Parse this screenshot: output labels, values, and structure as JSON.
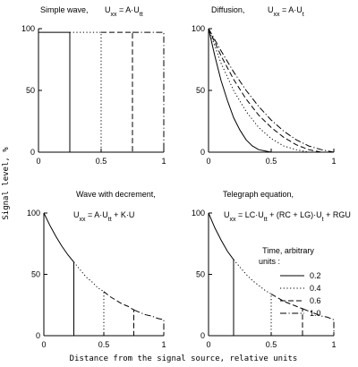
{
  "chart_data": {
    "type": "line",
    "figure": {
      "ylabel": "Signal level, %",
      "xlabel": "Distance from the signal source, relative units"
    },
    "legend": {
      "title_line1": "Time, arbitrary",
      "title_line2": "units :",
      "position": "inside bottom-right panel",
      "entries": [
        {
          "label": "0.2",
          "style": "solid"
        },
        {
          "label": "0.4",
          "style": "dot"
        },
        {
          "label": "0.6",
          "style": "dash"
        },
        {
          "label": "1.0",
          "style": "dashdot"
        }
      ]
    },
    "panels": [
      {
        "title": "Simple wave,",
        "equation": "U_xx = A·U_tt",
        "xlim": [
          0,
          1
        ],
        "ylim": [
          0,
          100
        ],
        "xticks": [
          "0",
          "0.5",
          "1"
        ],
        "yticks": [
          "0",
          "50",
          "100"
        ],
        "series": [
          {
            "style": "solid",
            "x": [
              0,
              0.25,
              0.25
            ],
            "y": [
              97,
              97,
              0
            ]
          },
          {
            "style": "dot",
            "x": [
              0.25,
              0.5,
              0.5
            ],
            "y": [
              97,
              97,
              0
            ]
          },
          {
            "style": "dash",
            "x": [
              0.5,
              0.75,
              0.75
            ],
            "y": [
              97,
              97,
              0
            ]
          },
          {
            "style": "dashdot",
            "x": [
              0.75,
              1.0,
              1.0
            ],
            "y": [
              97,
              97,
              0
            ]
          }
        ]
      },
      {
        "title": "Diffusion,",
        "equation": "U_xx = A·U_t",
        "xlim": [
          0,
          1
        ],
        "ylim": [
          0,
          100
        ],
        "xticks": [
          "0",
          "0.5",
          "1"
        ],
        "yticks": [
          "0",
          "50",
          "100"
        ],
        "series": [
          {
            "style": "solid",
            "x": [
              0,
              0.05,
              0.1,
              0.15,
              0.2,
              0.25,
              0.3,
              0.35,
              0.4,
              0.45,
              0.5,
              0.55,
              0.6
            ],
            "y": [
              100,
              78,
              58,
              42,
              28,
              18,
              10,
              5,
              2,
              1,
              0,
              0,
              0
            ]
          },
          {
            "style": "dot",
            "x": [
              0,
              0.1,
              0.2,
              0.3,
              0.4,
              0.5,
              0.6,
              0.7,
              0.8
            ],
            "y": [
              100,
              72,
              50,
              33,
              20,
              11,
              5,
              2,
              0
            ]
          },
          {
            "style": "dash",
            "x": [
              0,
              0.1,
              0.2,
              0.3,
              0.4,
              0.5,
              0.6,
              0.7,
              0.8,
              0.9
            ],
            "y": [
              100,
              78,
              59,
              43,
              30,
              20,
              12,
              6,
              2,
              0
            ]
          },
          {
            "style": "dashdot",
            "x": [
              0,
              0.1,
              0.2,
              0.3,
              0.4,
              0.5,
              0.6,
              0.7,
              0.8,
              0.9,
              1.0
            ],
            "y": [
              100,
              82,
              65,
              50,
              37,
              26,
              17,
              10,
              5,
              2,
              0
            ]
          }
        ]
      },
      {
        "title": "Wave with decrement,",
        "equation": "U_xx = A·U_tt + K·U",
        "xlim": [
          0,
          1
        ],
        "ylim": [
          0,
          100
        ],
        "xticks": [
          "0",
          "0.5",
          "1"
        ],
        "yticks": [
          "0",
          "50",
          "100"
        ],
        "series": [
          {
            "style": "solid",
            "x": [
              0,
              0.05,
              0.1,
              0.15,
              0.2,
              0.25,
              0.25
            ],
            "y": [
              100,
              90,
              81,
              73,
              66,
              60,
              0
            ]
          },
          {
            "style": "dot",
            "x": [
              0.25,
              0.3,
              0.35,
              0.4,
              0.45,
              0.5,
              0.5
            ],
            "y": [
              60,
              54,
              48,
              44,
              39,
              36,
              0
            ]
          },
          {
            "style": "dash",
            "x": [
              0.5,
              0.55,
              0.6,
              0.65,
              0.7,
              0.75,
              0.75
            ],
            "y": [
              36,
              32,
              29,
              26,
              24,
              21,
              0
            ]
          },
          {
            "style": "dashdot",
            "x": [
              0.75,
              0.8,
              0.85,
              0.9,
              0.95,
              1.0,
              1.0
            ],
            "y": [
              21,
              19,
              17,
              16,
              14,
              13,
              0
            ]
          }
        ]
      },
      {
        "title": "Telegraph equation,",
        "equation": "U_xx = LC·U_tt + (RC + LG)·U_t + RGU",
        "xlim": [
          0,
          1
        ],
        "ylim": [
          0,
          100
        ],
        "xticks": [
          "0",
          "0.5",
          "1"
        ],
        "yticks": [
          "0",
          "50",
          "100"
        ],
        "series": [
          {
            "style": "solid",
            "x": [
              0,
              0.05,
              0.1,
              0.15,
              0.2,
              0.2
            ],
            "y": [
              100,
              88,
              78,
              69,
              62,
              0
            ]
          },
          {
            "style": "dot",
            "x": [
              0.2,
              0.25,
              0.3,
              0.35,
              0.4,
              0.45,
              0.5,
              0.5
            ],
            "y": [
              62,
              56,
              50,
              45,
              41,
              37,
              34,
              0
            ]
          },
          {
            "style": "dash",
            "x": [
              0.5,
              0.55,
              0.6,
              0.65,
              0.7,
              0.75,
              0.75
            ],
            "y": [
              34,
              31,
              28,
              26,
              24,
              22,
              0
            ]
          },
          {
            "style": "dashdot",
            "x": [
              0.75,
              0.8,
              0.85,
              0.9,
              0.95,
              1.0,
              1.0
            ],
            "y": [
              22,
              20,
              18,
              16,
              15,
              13,
              0
            ]
          }
        ]
      }
    ]
  }
}
